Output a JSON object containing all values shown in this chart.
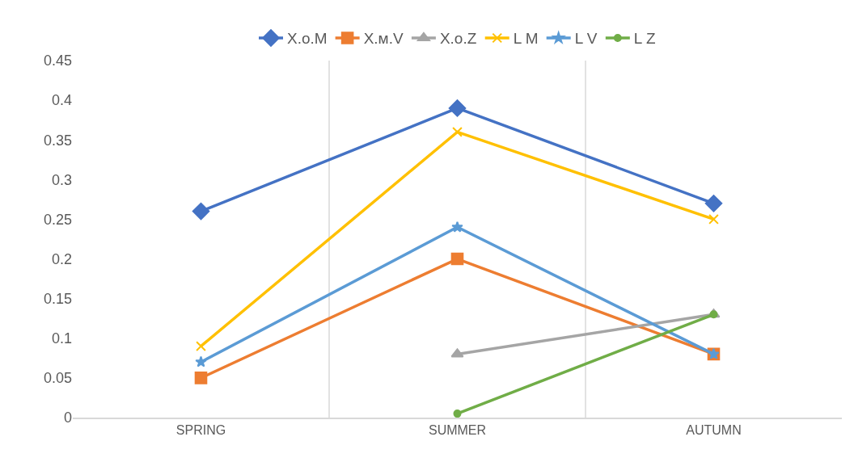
{
  "chart_data": {
    "type": "line",
    "categories": [
      "SPRING",
      "SUMMER",
      "AUTUMN"
    ],
    "series": [
      {
        "name": "X.o.M",
        "color": "#4472c4",
        "marker": "diamond",
        "values": [
          0.26,
          0.39,
          0.27
        ]
      },
      {
        "name": "X.м.V",
        "color": "#ed7d31",
        "marker": "square",
        "values": [
          0.05,
          0.2,
          0.08
        ]
      },
      {
        "name": "X.o.Z",
        "color": "#a5a5a5",
        "marker": "triangle",
        "values": [
          null,
          0.08,
          0.13
        ]
      },
      {
        "name": "L M",
        "color": "#ffc000",
        "marker": "cross",
        "values": [
          0.09,
          0.36,
          0.25
        ]
      },
      {
        "name": "L V",
        "color": "#5b9bd5",
        "marker": "star",
        "values": [
          0.07,
          0.24,
          0.08
        ]
      },
      {
        "name": "L Z",
        "color": "#70ad47",
        "marker": "circle",
        "values": [
          null,
          0.005,
          0.13
        ]
      }
    ],
    "ylim": [
      0,
      0.45
    ],
    "yticks": [
      0,
      0.05,
      0.1,
      0.15,
      0.2,
      0.25,
      0.3,
      0.35,
      0.4,
      0.45
    ],
    "grid": "x",
    "legend": "top",
    "line_style": "solid"
  }
}
